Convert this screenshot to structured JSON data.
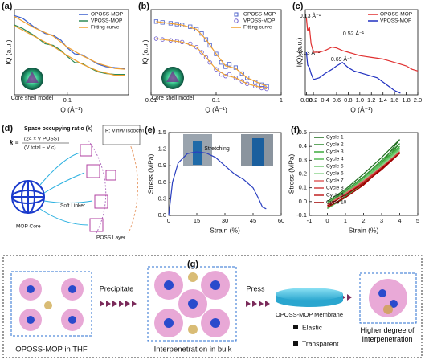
{
  "chart_data": [
    {
      "type": "line",
      "panel": "(a)",
      "xlabel": "Q (Å⁻¹)",
      "ylabel": "IQ (a.u.)",
      "xscale": "log",
      "xlim": [
        0.015,
        0.9
      ],
      "ylim": [
        0,
        1
      ],
      "xticks": [
        0.1
      ],
      "legend": "upper right",
      "annotations": [
        "Core shell model"
      ],
      "series": [
        {
          "name": "OPOSS-MOP",
          "color": "#3a5fcd",
          "x": [
            0.015,
            0.02,
            0.03,
            0.045,
            0.06,
            0.08,
            0.1,
            0.13,
            0.17,
            0.22,
            0.3,
            0.4,
            0.55,
            0.8
          ],
          "values": [
            0.93,
            0.9,
            0.8,
            0.72,
            0.7,
            0.64,
            0.55,
            0.48,
            0.47,
            0.42,
            0.36,
            0.33,
            0.32,
            0.31
          ]
        },
        {
          "name": "VPOSS-MOP",
          "color": "#2e8b57",
          "x": [
            0.015,
            0.02,
            0.03,
            0.045,
            0.06,
            0.08,
            0.1,
            0.13,
            0.17,
            0.22,
            0.3,
            0.4,
            0.55,
            0.8
          ],
          "values": [
            0.82,
            0.78,
            0.7,
            0.6,
            0.58,
            0.52,
            0.45,
            0.38,
            0.37,
            0.32,
            0.27,
            0.25,
            0.24,
            0.24
          ]
        },
        {
          "name": "Fitting curve",
          "color": "#f0a030",
          "x": [
            0.015,
            0.03,
            0.06,
            0.1,
            0.17,
            0.3,
            0.55,
            0.8,
            null,
            0.015,
            0.03,
            0.06,
            0.1,
            0.17,
            0.3,
            0.55,
            0.8
          ],
          "values": [
            0.92,
            0.79,
            0.69,
            0.56,
            0.46,
            0.37,
            0.31,
            0.3,
            null,
            0.81,
            0.69,
            0.57,
            0.46,
            0.36,
            0.28,
            0.23,
            0.23
          ]
        }
      ]
    },
    {
      "type": "scatter",
      "panel": "(b)",
      "xlabel": "Q (Å⁻¹)",
      "ylabel": "IQ (a.u.)",
      "xscale": "log",
      "xlim": [
        0.01,
        1
      ],
      "ylim": [
        0,
        1
      ],
      "xticks": [
        0.01,
        0.1,
        1
      ],
      "legend": "upper right",
      "annotations": [
        "Core shell model"
      ],
      "series": [
        {
          "name": "OPOSS-MOP",
          "color": "#4a5fc9",
          "marker": "square",
          "x": [
            0.012,
            0.015,
            0.02,
            0.025,
            0.03,
            0.04,
            0.05,
            0.06,
            0.07,
            0.08,
            0.1,
            0.12,
            0.14,
            0.16,
            0.2,
            0.25,
            0.3,
            0.4,
            0.5,
            0.6
          ],
          "values": [
            0.86,
            0.85,
            0.84,
            0.83,
            0.82,
            0.8,
            0.77,
            0.72,
            0.65,
            0.58,
            0.48,
            0.38,
            0.33,
            0.36,
            0.32,
            0.25,
            0.2,
            0.15,
            0.12,
            0.1
          ]
        },
        {
          "name": "VPOSS-MOP",
          "color": "#6a5acd",
          "marker": "circle",
          "x": [
            0.012,
            0.015,
            0.02,
            0.025,
            0.03,
            0.04,
            0.05,
            0.06,
            0.07,
            0.08,
            0.1,
            0.12,
            0.14,
            0.16,
            0.2,
            0.25,
            0.3,
            0.4,
            0.5,
            0.6
          ],
          "values": [
            0.66,
            0.65,
            0.64,
            0.63,
            0.62,
            0.6,
            0.56,
            0.5,
            0.44,
            0.38,
            0.3,
            0.24,
            0.22,
            0.24,
            0.2,
            0.16,
            0.13,
            0.1,
            0.08,
            0.07
          ]
        },
        {
          "name": "Fitting curve",
          "color": "#f0a030",
          "x": [
            0.012,
            0.03,
            0.05,
            0.07,
            0.1,
            0.14,
            0.2,
            0.3,
            0.6,
            null,
            0.012,
            0.03,
            0.05,
            0.07,
            0.1,
            0.14,
            0.2,
            0.3,
            0.6
          ],
          "values": [
            0.86,
            0.82,
            0.77,
            0.65,
            0.48,
            0.34,
            0.31,
            0.2,
            0.1,
            null,
            0.66,
            0.62,
            0.56,
            0.44,
            0.3,
            0.23,
            0.2,
            0.13,
            0.07
          ]
        }
      ]
    },
    {
      "type": "line",
      "panel": "(c)",
      "xlabel": "Q (Å⁻¹)",
      "ylabel": "I(Q) (a.u.)",
      "xlim": [
        0.06,
        2.0
      ],
      "ylim": [
        0,
        1
      ],
      "legend": "upper right",
      "xticks": [
        0.08,
        0.2,
        0.4,
        0.6,
        0.8,
        {
          "value": 1.0,
          "label": "1.0"
        },
        1.2,
        1.4,
        1.6,
        1.8,
        {
          "value": 2.0,
          "label": "2.0"
        }
      ],
      "annotations": [
        "0.13 Å⁻¹",
        "0.52 Å⁻¹",
        "0.13 Å⁻¹",
        "0.69 Å⁻¹"
      ],
      "x": [
        0.08,
        0.1,
        0.13,
        0.16,
        0.2,
        0.3,
        0.4,
        0.52,
        0.6,
        0.7,
        0.8,
        0.9,
        1.0,
        1.1,
        1.2,
        1.3,
        1.4,
        1.5,
        1.6,
        1.7,
        1.8,
        1.9,
        2.0
      ],
      "series": [
        {
          "name": "OPOSS-MOP",
          "color": "#e03030",
          "values": [
            0.9,
            0.75,
            0.8,
            0.6,
            0.5,
            0.5,
            0.52,
            0.56,
            0.55,
            0.52,
            0.5,
            0.48,
            0.46,
            0.45,
            0.44,
            0.43,
            0.42,
            0.4,
            0.38,
            0.36,
            0.34,
            0.3,
            0.28
          ]
        },
        {
          "name": "VPOSS-MOP",
          "color": "#2030c0",
          "values": [
            0.5,
            0.35,
            0.32,
            0.25,
            0.18,
            0.2,
            0.25,
            0.3,
            0.34,
            0.38,
            0.32,
            0.28,
            0.26,
            0.24,
            0.22,
            0.2,
            0.15,
            0.1,
            0.05,
            0.02,
            null,
            null,
            null
          ]
        }
      ]
    },
    {
      "type": "line",
      "panel": "(e)",
      "xlabel": "Strain (%)",
      "ylabel": "Stress (MPa)",
      "xlim": [
        0,
        60
      ],
      "ylim": [
        0,
        1.5
      ],
      "xticks": [
        0,
        15,
        30,
        45,
        60
      ],
      "yticks": [
        {
          "value": 0,
          "label": "0.0"
        },
        0.3,
        0.6,
        0.9,
        1.2,
        1.5
      ],
      "annotations": [
        "Stretching"
      ],
      "series": [
        {
          "color": "#2a3fc0",
          "x": [
            0,
            2,
            5,
            10,
            15,
            20,
            25,
            30,
            35,
            40,
            45,
            48,
            50,
            52
          ],
          "values": [
            0,
            0.6,
            0.95,
            1.12,
            1.15,
            1.13,
            1.05,
            0.9,
            0.75,
            0.65,
            0.5,
            0.3,
            0.15,
            0.12
          ]
        }
      ]
    },
    {
      "type": "line",
      "panel": "(f)",
      "xlabel": "Strain (%)",
      "ylabel": "Stress (MPa)",
      "xlim": [
        -1,
        5
      ],
      "ylim": [
        -0.1,
        0.5
      ],
      "xticks": [
        -1,
        0,
        1,
        2,
        3,
        4,
        5
      ],
      "yticks": [
        -0.1,
        {
          "value": 0,
          "label": "0.0"
        },
        0.1,
        0.2,
        0.3,
        0.4,
        0.5
      ],
      "legend": "upper left",
      "x": [
        0,
        1,
        2,
        3,
        4,
        3,
        2,
        1,
        0
      ],
      "series": [
        {
          "name": "Cycle 1",
          "color": "#1f6e1f",
          "values": [
            0,
            0.09,
            0.2,
            0.32,
            0.45,
            0.28,
            0.14,
            0.04,
            -0.05
          ]
        },
        {
          "name": "Cycle 2",
          "color": "#2e8b2e",
          "values": [
            -0.01,
            0.08,
            0.18,
            0.3,
            0.42,
            0.27,
            0.13,
            0.03,
            -0.05
          ]
        },
        {
          "name": "Cycle 3",
          "color": "#3caa3c",
          "values": [
            -0.01,
            0.07,
            0.17,
            0.29,
            0.4,
            0.26,
            0.13,
            0.03,
            -0.05
          ]
        },
        {
          "name": "Cycle 4",
          "color": "#55bb55",
          "values": [
            -0.02,
            0.07,
            0.16,
            0.28,
            0.39,
            0.26,
            0.13,
            0.03,
            -0.05
          ]
        },
        {
          "name": "Cycle 5",
          "color": "#70c870",
          "values": [
            -0.02,
            0.06,
            0.16,
            0.27,
            0.38,
            0.25,
            0.12,
            0.03,
            -0.04
          ]
        },
        {
          "name": "Cycle 6",
          "color": "#8fd68f",
          "values": [
            -0.02,
            0.06,
            0.15,
            0.26,
            0.37,
            0.25,
            0.12,
            0.03,
            -0.04
          ]
        },
        {
          "name": "Cycle 7",
          "color": "#e06060",
          "values": [
            -0.02,
            0.06,
            0.15,
            0.25,
            0.36,
            0.24,
            0.12,
            0.03,
            -0.04
          ]
        },
        {
          "name": "Cycle 8",
          "color": "#d04040",
          "values": [
            -0.03,
            0.05,
            0.14,
            0.25,
            0.36,
            0.24,
            0.12,
            0.03,
            -0.04
          ]
        },
        {
          "name": "Cycle 9",
          "color": "#c02020",
          "values": [
            -0.03,
            0.05,
            0.14,
            0.24,
            0.35,
            0.24,
            0.12,
            0.03,
            -0.04
          ]
        },
        {
          "name": "Cycle 10",
          "color": "#a00000",
          "values": [
            -0.03,
            0.05,
            0.13,
            0.23,
            0.35,
            0.24,
            0.12,
            0.03,
            -0.04
          ]
        }
      ]
    }
  ],
  "diagram_d": {
    "panel": "(d)",
    "title": "Space occupying ratio (k)",
    "k": "k =",
    "numerator": "(24 × V POSS)",
    "denominator": "(V total − V c)",
    "r_group": "R: Vinyl/ Isooctyl",
    "core": "MOP Core",
    "linker": "Soft Linker",
    "layer": "POSS Layer"
  },
  "diagram_g": {
    "panel": "(g)",
    "step1": "Precipitate",
    "step2": "Press",
    "membrane": "OPOSS-MOP Membrane",
    "state1": "OPOSS-MOP in THF",
    "state2": "Interpenetration in bulk",
    "prop1": "Elastic",
    "prop2": "Transparent",
    "state3": "Higher degree of Interpenetration"
  }
}
